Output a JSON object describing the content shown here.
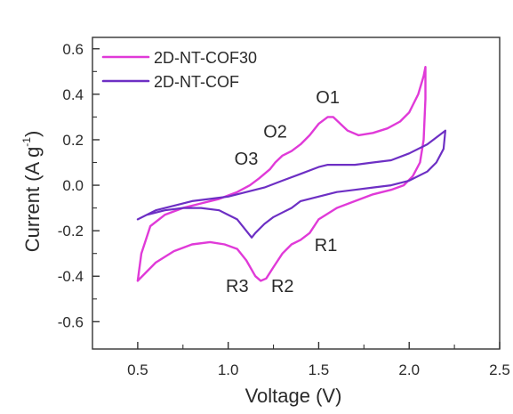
{
  "chart_data": {
    "type": "line",
    "xlabel": "Voltage (V)",
    "ylabel_main": "Current (A g",
    "ylabel_sup": "-1",
    "ylabel_close": ")",
    "xlim": [
      0.25,
      2.5
    ],
    "ylim": [
      -0.72,
      0.65
    ],
    "x_ticks": [
      0.5,
      1.0,
      1.5,
      2.0,
      2.5
    ],
    "x_tick_labels": [
      "0.5",
      "1.0",
      "1.5",
      "2.0",
      "2.5"
    ],
    "y_ticks": [
      -0.6,
      -0.4,
      -0.2,
      0.0,
      0.2,
      0.4,
      0.6
    ],
    "y_tick_labels": [
      "-0.6",
      "-0.4",
      "-0.2",
      "0.0",
      "0.2",
      "0.4",
      "0.6"
    ],
    "legend": {
      "placement": "top-left"
    },
    "series": [
      {
        "name": "2D-NT-COF30",
        "color": "#e03ad8",
        "points": [
          [
            0.5,
            -0.42
          ],
          [
            0.52,
            -0.3
          ],
          [
            0.57,
            -0.18
          ],
          [
            0.65,
            -0.13
          ],
          [
            0.75,
            -0.1
          ],
          [
            0.85,
            -0.08
          ],
          [
            0.95,
            -0.06
          ],
          [
            1.05,
            -0.03
          ],
          [
            1.12,
            0.0
          ],
          [
            1.17,
            0.03
          ],
          [
            1.2,
            0.05
          ],
          [
            1.23,
            0.07
          ],
          [
            1.26,
            0.1
          ],
          [
            1.3,
            0.13
          ],
          [
            1.35,
            0.15
          ],
          [
            1.4,
            0.18
          ],
          [
            1.45,
            0.22
          ],
          [
            1.5,
            0.27
          ],
          [
            1.55,
            0.3
          ],
          [
            1.58,
            0.3
          ],
          [
            1.62,
            0.27
          ],
          [
            1.66,
            0.24
          ],
          [
            1.72,
            0.22
          ],
          [
            1.8,
            0.23
          ],
          [
            1.88,
            0.25
          ],
          [
            1.95,
            0.28
          ],
          [
            2.0,
            0.32
          ],
          [
            2.05,
            0.4
          ],
          [
            2.08,
            0.48
          ],
          [
            2.09,
            0.52
          ],
          [
            2.09,
            0.38
          ],
          [
            2.08,
            0.2
          ],
          [
            2.06,
            0.1
          ],
          [
            2.02,
            0.04
          ],
          [
            1.97,
            0.0
          ],
          [
            1.9,
            -0.02
          ],
          [
            1.8,
            -0.04
          ],
          [
            1.7,
            -0.07
          ],
          [
            1.6,
            -0.1
          ],
          [
            1.5,
            -0.15
          ],
          [
            1.45,
            -0.21
          ],
          [
            1.4,
            -0.24
          ],
          [
            1.35,
            -0.26
          ],
          [
            1.3,
            -0.3
          ],
          [
            1.25,
            -0.36
          ],
          [
            1.21,
            -0.41
          ],
          [
            1.18,
            -0.42
          ],
          [
            1.15,
            -0.4
          ],
          [
            1.1,
            -0.33
          ],
          [
            1.05,
            -0.28
          ],
          [
            0.98,
            -0.26
          ],
          [
            0.9,
            -0.25
          ],
          [
            0.8,
            -0.26
          ],
          [
            0.7,
            -0.29
          ],
          [
            0.6,
            -0.34
          ],
          [
            0.5,
            -0.42
          ]
        ]
      },
      {
        "name": "2D-NT-COF",
        "color": "#6d2fc4",
        "points": [
          [
            0.5,
            -0.15
          ],
          [
            0.6,
            -0.11
          ],
          [
            0.7,
            -0.09
          ],
          [
            0.8,
            -0.07
          ],
          [
            0.9,
            -0.06
          ],
          [
            1.0,
            -0.05
          ],
          [
            1.1,
            -0.03
          ],
          [
            1.2,
            -0.01
          ],
          [
            1.3,
            0.02
          ],
          [
            1.4,
            0.05
          ],
          [
            1.5,
            0.08
          ],
          [
            1.55,
            0.09
          ],
          [
            1.6,
            0.09
          ],
          [
            1.7,
            0.09
          ],
          [
            1.8,
            0.1
          ],
          [
            1.9,
            0.11
          ],
          [
            2.0,
            0.14
          ],
          [
            2.1,
            0.18
          ],
          [
            2.2,
            0.24
          ],
          [
            2.19,
            0.16
          ],
          [
            2.15,
            0.1
          ],
          [
            2.1,
            0.06
          ],
          [
            2.0,
            0.02
          ],
          [
            1.9,
            0.0
          ],
          [
            1.8,
            -0.01
          ],
          [
            1.7,
            -0.02
          ],
          [
            1.6,
            -0.03
          ],
          [
            1.5,
            -0.05
          ],
          [
            1.4,
            -0.07
          ],
          [
            1.35,
            -0.1
          ],
          [
            1.3,
            -0.12
          ],
          [
            1.25,
            -0.14
          ],
          [
            1.2,
            -0.17
          ],
          [
            1.15,
            -0.21
          ],
          [
            1.13,
            -0.23
          ],
          [
            1.1,
            -0.2
          ],
          [
            1.05,
            -0.15
          ],
          [
            0.95,
            -0.11
          ],
          [
            0.85,
            -0.1
          ],
          [
            0.75,
            -0.1
          ],
          [
            0.65,
            -0.11
          ],
          [
            0.55,
            -0.13
          ],
          [
            0.5,
            -0.15
          ]
        ]
      }
    ],
    "annotations": [
      {
        "label": "O1",
        "x": 1.55,
        "y": 0.36
      },
      {
        "label": "O2",
        "x": 1.26,
        "y": 0.21
      },
      {
        "label": "O3",
        "x": 1.1,
        "y": 0.09
      },
      {
        "label": "R1",
        "x": 1.54,
        "y": -0.29
      },
      {
        "label": "R2",
        "x": 1.3,
        "y": -0.47
      },
      {
        "label": "R3",
        "x": 1.05,
        "y": -0.47
      }
    ]
  }
}
